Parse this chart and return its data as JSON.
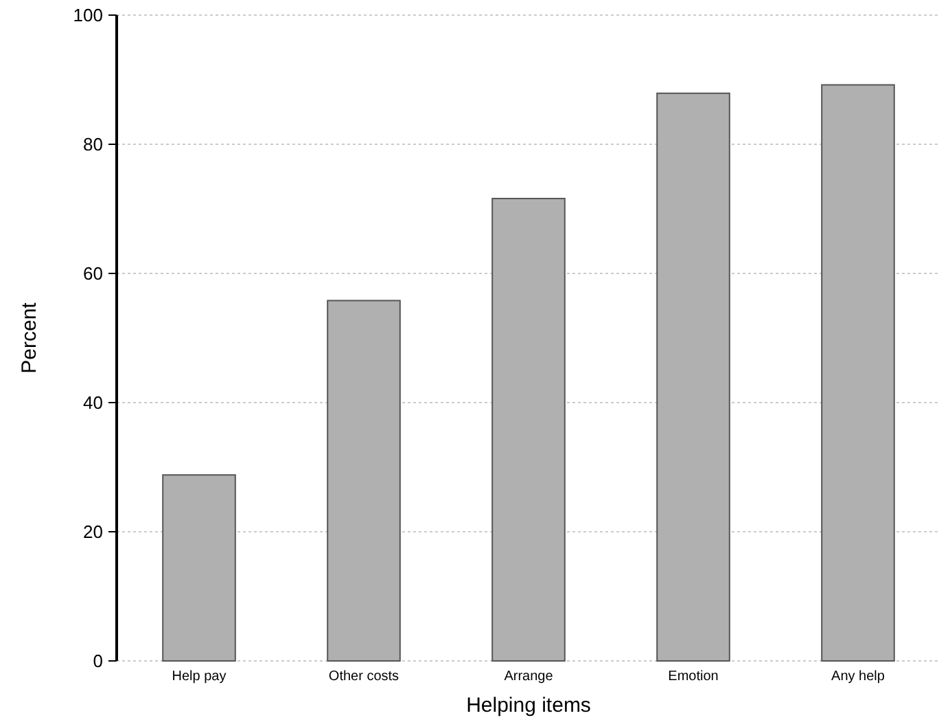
{
  "chart_data": {
    "type": "bar",
    "xlabel": "Helping items",
    "ylabel": "Percent",
    "categories": [
      "Help pay",
      "Other costs",
      "Arrange",
      "Emotion",
      "Any help"
    ],
    "values": [
      28.8,
      55.8,
      71.6,
      87.9,
      89.2
    ],
    "color": "#b0b0b0",
    "ylim": [
      0,
      100
    ],
    "yticks": [
      0,
      20,
      40,
      60,
      80,
      100
    ],
    "grid": "y"
  }
}
